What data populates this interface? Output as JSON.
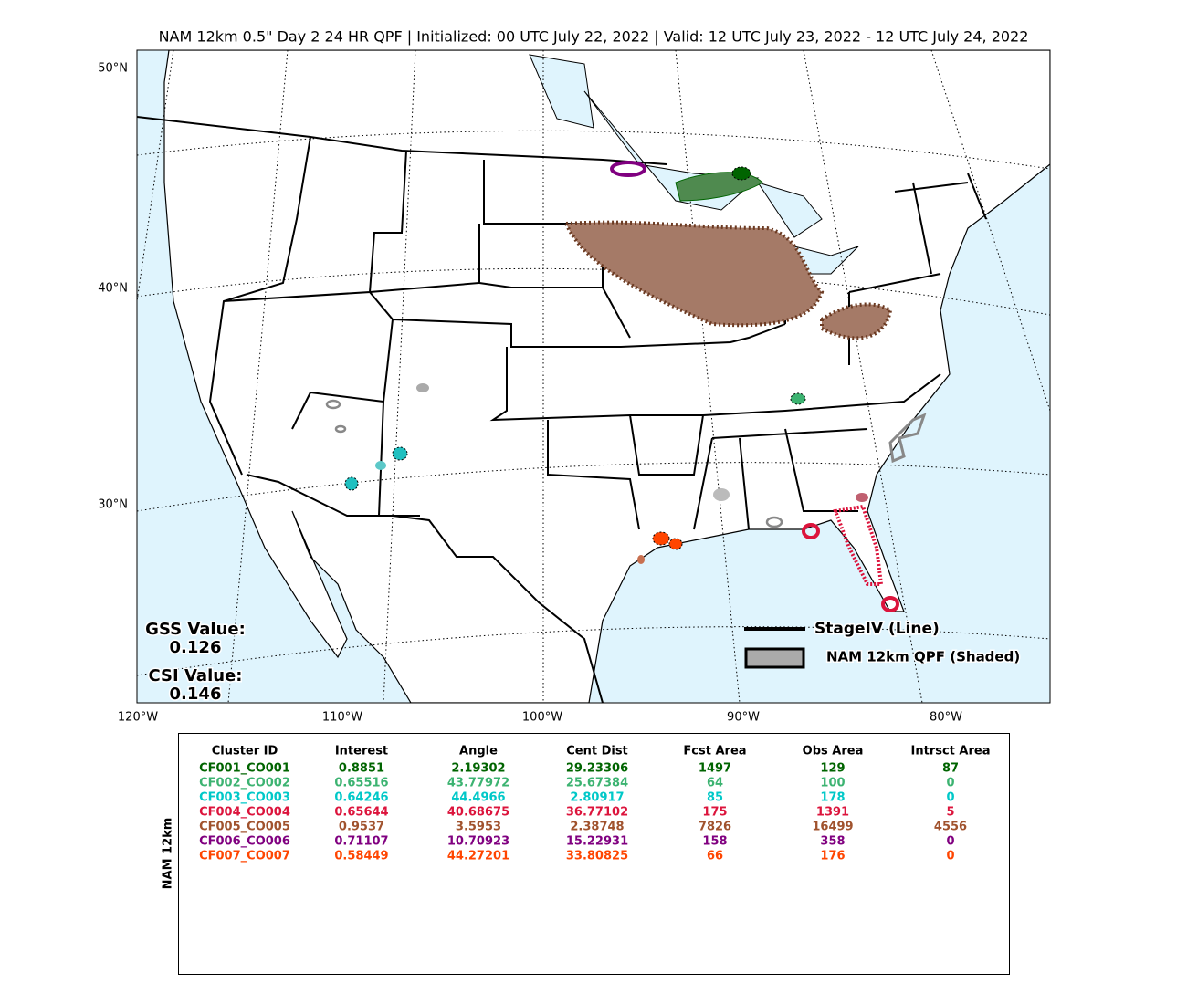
{
  "header": {
    "title": "NAM 12km 0.5\" Day 2 24 HR QPF | Initialized: 00 UTC July 22, 2022 | Valid: 12 UTC July 23, 2022 - 12 UTC July 24, 2022"
  },
  "map": {
    "lat_labels": [
      "50°N",
      "40°N",
      "30°N"
    ],
    "lon_labels": [
      "120°W",
      "110°W",
      "100°W",
      "90°W",
      "80°W"
    ],
    "gss_label": "GSS Value:",
    "gss_value": "0.126",
    "csi_label": "CSI Value:",
    "csi_value": "0.146",
    "legend": {
      "line": "StageIV (Line)",
      "shaded": "NAM 12km QPF (Shaded)"
    }
  },
  "table": {
    "side_label": "NAM 12km",
    "header": [
      "Cluster ID",
      "Interest",
      "Angle",
      "Cent Dist",
      "Fcst Area",
      "Obs Area",
      "Intrsct Area"
    ],
    "rows": [
      {
        "color": "#006400",
        "cells": [
          "CF001_CO001",
          "0.8851",
          "2.19302",
          "29.23306",
          "1497",
          "129",
          "87"
        ]
      },
      {
        "color": "#3cb371",
        "cells": [
          "CF002_CO002",
          "0.65516",
          "43.77972",
          "25.67384",
          "64",
          "100",
          "0"
        ]
      },
      {
        "color": "#00c8c8",
        "cells": [
          "CF003_CO003",
          "0.64246",
          "44.4966",
          "2.80917",
          "85",
          "178",
          "0"
        ]
      },
      {
        "color": "#dc143c",
        "cells": [
          "CF004_CO004",
          "0.65644",
          "40.68675",
          "36.77102",
          "175",
          "1391",
          "5"
        ]
      },
      {
        "color": "#a0522d",
        "cells": [
          "CF005_CO005",
          "0.9537",
          "3.5953",
          "2.38748",
          "7826",
          "16499",
          "4556"
        ]
      },
      {
        "color": "#800080",
        "cells": [
          "CF006_CO006",
          "0.71107",
          "10.70923",
          "15.22931",
          "158",
          "358",
          "0"
        ]
      },
      {
        "color": "#ff4500",
        "cells": [
          "CF007_CO007",
          "0.58449",
          "44.27201",
          "33.80825",
          "66",
          "176",
          "0"
        ]
      }
    ]
  }
}
